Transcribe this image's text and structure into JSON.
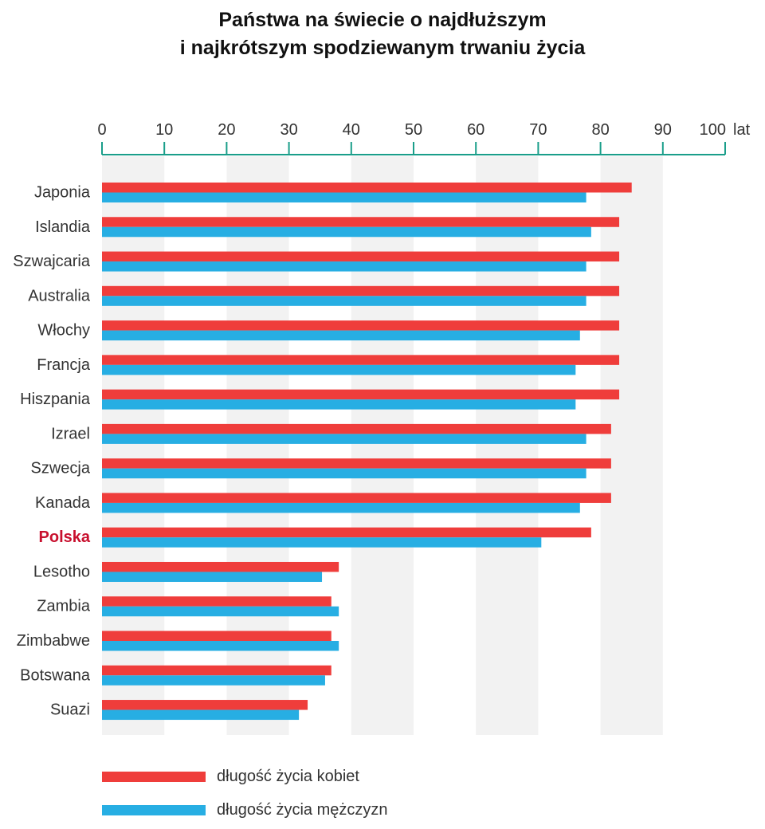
{
  "chart_data": {
    "type": "bar",
    "orientation": "horizontal",
    "title_lines": [
      "Państwa na świecie o najdłuższym",
      "i najkrótszym spodziewanym trwaniu życia"
    ],
    "x_axis": {
      "ticks": [
        "0",
        "10",
        "20",
        "30",
        "40",
        "50",
        "60",
        "70",
        "80",
        "90",
        "100"
      ],
      "unit": "lat",
      "range": [
        0,
        100
      ],
      "axis_position": "top"
    },
    "categories": [
      "Japonia",
      "Islandia",
      "Szwajcaria",
      "Australia",
      "Włochy",
      "Francja",
      "Hiszpania",
      "Izrael",
      "Szwecja",
      "Kanada",
      "Polska",
      "Lesotho",
      "Zambia",
      "Zimbabwe",
      "Botswana",
      "Suazi"
    ],
    "highlighted_category": "Polska",
    "series": [
      {
        "name": "długość życia kobiet",
        "color": "#ef3d3b",
        "values": [
          85,
          83,
          83,
          83,
          83,
          83,
          83,
          81.7,
          81.7,
          81.7,
          78.5,
          38,
          36.8,
          36.8,
          36.8,
          33
        ]
      },
      {
        "name": "długość życia mężczyzn",
        "color": "#27aee3",
        "values": [
          77.7,
          78.5,
          77.7,
          77.7,
          76.7,
          76,
          76,
          77.7,
          77.7,
          76.7,
          70.5,
          35.3,
          38,
          38,
          35.8,
          31.6
        ]
      }
    ],
    "grid": "alternating-bands",
    "legend_placement": "bottom-left",
    "colors": {
      "axis": "#1a9e8a",
      "band": "#f2f2f2",
      "highlight_label": "#c8102e"
    }
  }
}
